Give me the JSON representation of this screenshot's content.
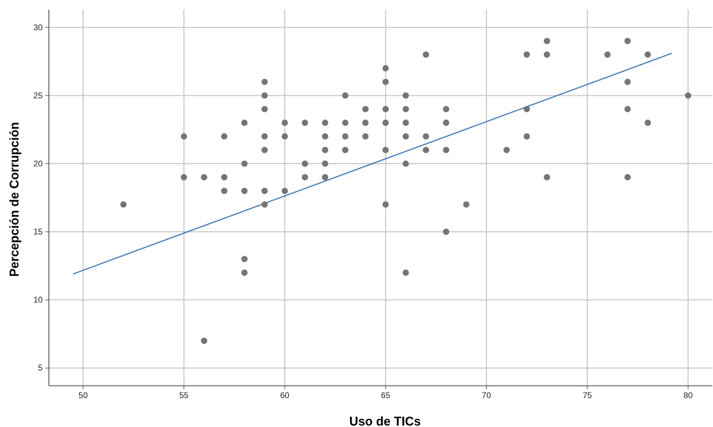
{
  "chart_data": {
    "type": "scatter",
    "title": "",
    "xlabel": "Uso de TICs",
    "ylabel": "Percepción de Corrupción",
    "xlim": [
      48.3,
      81.2
    ],
    "ylim": [
      3.7,
      31.3
    ],
    "xticks": [
      50,
      55,
      60,
      65,
      70,
      75,
      80
    ],
    "yticks": [
      5,
      10,
      15,
      20,
      25,
      30
    ],
    "grid": true,
    "legend": "none",
    "colors": {
      "points": "#757575",
      "fit_line": "#3e73b3",
      "grid": "#bfbfbf",
      "axis": "#555555"
    },
    "points": [
      [
        52,
        17
      ],
      [
        55,
        22
      ],
      [
        55,
        19
      ],
      [
        56,
        19
      ],
      [
        56,
        7
      ],
      [
        57,
        22
      ],
      [
        57,
        19
      ],
      [
        57,
        18
      ],
      [
        58,
        23
      ],
      [
        58,
        20
      ],
      [
        58,
        18
      ],
      [
        58,
        13
      ],
      [
        58,
        12
      ],
      [
        59,
        26
      ],
      [
        59,
        25
      ],
      [
        59,
        24
      ],
      [
        59,
        22
      ],
      [
        59,
        21
      ],
      [
        59,
        18
      ],
      [
        59,
        17
      ],
      [
        60,
        23
      ],
      [
        60,
        22
      ],
      [
        60,
        18
      ],
      [
        61,
        23
      ],
      [
        61,
        20
      ],
      [
        61,
        19
      ],
      [
        62,
        23
      ],
      [
        62,
        22
      ],
      [
        62,
        21
      ],
      [
        62,
        20
      ],
      [
        62,
        19
      ],
      [
        63,
        25
      ],
      [
        63,
        23
      ],
      [
        63,
        22
      ],
      [
        63,
        21
      ],
      [
        64,
        24
      ],
      [
        64,
        23
      ],
      [
        64,
        22
      ],
      [
        65,
        27
      ],
      [
        65,
        26
      ],
      [
        65,
        24
      ],
      [
        65,
        23
      ],
      [
        65,
        21
      ],
      [
        65,
        17
      ],
      [
        66,
        25
      ],
      [
        66,
        24
      ],
      [
        66,
        23
      ],
      [
        66,
        22
      ],
      [
        66,
        20
      ],
      [
        66,
        12
      ],
      [
        67,
        28
      ],
      [
        67,
        22
      ],
      [
        67,
        21
      ],
      [
        68,
        24
      ],
      [
        68,
        23
      ],
      [
        68,
        21
      ],
      [
        68,
        15
      ],
      [
        69,
        17
      ],
      [
        71,
        21
      ],
      [
        72,
        28
      ],
      [
        72,
        24
      ],
      [
        72,
        22
      ],
      [
        73,
        29
      ],
      [
        73,
        28
      ],
      [
        73,
        19
      ],
      [
        76,
        28
      ],
      [
        77,
        29
      ],
      [
        77,
        26
      ],
      [
        77,
        24
      ],
      [
        77,
        19
      ],
      [
        78,
        28
      ],
      [
        78,
        23
      ],
      [
        80,
        25
      ]
    ],
    "fit_line": {
      "x": [
        49.5,
        79.2
      ],
      "y": [
        11.9,
        28.1
      ]
    }
  }
}
